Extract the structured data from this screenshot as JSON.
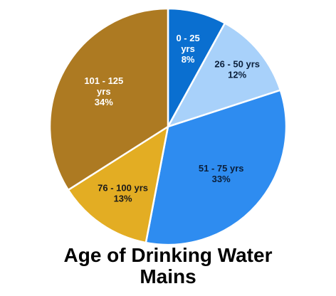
{
  "chart_data": {
    "type": "pie",
    "title_lines": [
      "Age of Drinking Water",
      "Mains"
    ],
    "slices": [
      {
        "label_lines": [
          "0 - 25",
          "yrs",
          "8%"
        ],
        "category": "0 - 25 yrs",
        "value": 8,
        "color": "#0a6fd0",
        "text_color": "#ffffff"
      },
      {
        "label_lines": [
          "26 - 50 yrs",
          "12%"
        ],
        "category": "26 - 50 yrs",
        "value": 12,
        "color": "#a8d1fa",
        "text_color": "#0b1f3a"
      },
      {
        "label_lines": [
          "51 - 75 yrs",
          "33%"
        ],
        "category": "51 - 75 yrs",
        "value": 33,
        "color": "#2e8cf0",
        "text_color": "#0b1f3a"
      },
      {
        "label_lines": [
          "76 - 100 yrs",
          "13%"
        ],
        "category": "76 - 100 yrs",
        "value": 13,
        "color": "#e3ad23",
        "text_color": "#1a1a1a"
      },
      {
        "label_lines": [
          "101 - 125",
          "yrs",
          "34%"
        ],
        "category": "101 - 125 yrs",
        "value": 34,
        "color": "#ad7a22",
        "text_color": "#ffffff"
      }
    ]
  }
}
